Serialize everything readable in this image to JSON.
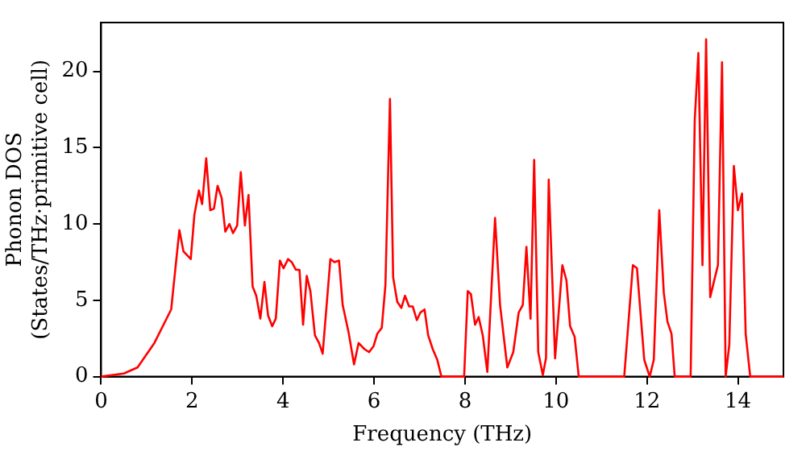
{
  "chart_data": {
    "type": "line",
    "xlabel": "Frequency (THz)",
    "ylabel": "Phonon DOS\n(States/THz·primitive cell)",
    "xlim": [
      0,
      15
    ],
    "ylim": [
      0,
      23.2
    ],
    "xticks": [
      0,
      2,
      4,
      6,
      8,
      10,
      12,
      14
    ],
    "yticks": [
      0,
      5,
      10,
      15,
      20
    ],
    "grid": false,
    "legend": false,
    "marker": "none",
    "line_style": "solid",
    "series": [
      {
        "color": "#ff0000",
        "x": [
          0,
          0.5,
          0.8,
          1.17,
          1.54,
          1.72,
          1.81,
          1.97,
          2.05,
          2.15,
          2.22,
          2.31,
          2.4,
          2.48,
          2.56,
          2.65,
          2.73,
          2.82,
          2.9,
          2.99,
          3.07,
          3.16,
          3.24,
          3.33,
          3.41,
          3.5,
          3.59,
          3.67,
          3.76,
          3.84,
          3.93,
          4.01,
          4.11,
          4.19,
          4.28,
          4.36,
          4.44,
          4.52,
          4.6,
          4.7,
          4.79,
          4.87,
          5.04,
          5.13,
          5.23,
          5.31,
          5.44,
          5.56,
          5.66,
          5.79,
          5.89,
          5.99,
          6.07,
          6.17,
          6.25,
          6.35,
          6.42,
          6.51,
          6.6,
          6.68,
          6.77,
          6.85,
          6.94,
          7.02,
          7.11,
          7.19,
          7.29,
          7.39,
          7.48,
          7.98,
          8.06,
          8.13,
          8.22,
          8.3,
          8.39,
          8.49,
          8.66,
          8.77,
          8.93,
          9.06,
          9.18,
          9.27,
          9.35,
          9.44,
          9.52,
          9.61,
          9.71,
          9.78,
          9.84,
          9.98,
          10.14,
          10.23,
          10.31,
          10.41,
          10.5,
          11.5,
          11.69,
          11.78,
          11.94,
          12.06,
          12.15,
          12.27,
          12.37,
          12.45,
          12.54,
          12.61,
          12.96,
          13.05,
          13.13,
          13.22,
          13.3,
          13.39,
          13.47,
          13.56,
          13.65,
          13.73,
          13.81,
          13.91,
          14,
          14.09,
          14.17,
          14.27,
          15
        ],
        "values": [
          0,
          0.2,
          0.6,
          2.2,
          4.4,
          9.6,
          8.2,
          7.7,
          10.6,
          12.2,
          11.3,
          14.3,
          10.9,
          11,
          12.5,
          11.7,
          9.5,
          10,
          9.4,
          9.9,
          13.4,
          9.9,
          11.9,
          5.9,
          5.3,
          3.8,
          6.2,
          4,
          3.3,
          3.8,
          7.6,
          7.1,
          7.7,
          7.5,
          7,
          7,
          3.4,
          6.6,
          5.6,
          2.7,
          2.2,
          1.5,
          7.7,
          7.5,
          7.6,
          4.7,
          2.9,
          0.8,
          2.2,
          1.8,
          1.6,
          2,
          2.8,
          3.2,
          6,
          18.2,
          6.5,
          4.9,
          4.5,
          5.3,
          4.6,
          4.6,
          3.7,
          4.2,
          4.4,
          2.7,
          1.8,
          1.1,
          0,
          0,
          5.6,
          5.4,
          3.4,
          3.9,
          2.7,
          0.3,
          10.4,
          4.7,
          0.6,
          1.6,
          4.2,
          4.7,
          8.5,
          3.8,
          14.2,
          1.6,
          0.1,
          1.2,
          12.9,
          1.2,
          7.3,
          6.3,
          3.3,
          2.6,
          0,
          0,
          7.3,
          7.1,
          1.1,
          0,
          1.1,
          10.9,
          5.5,
          3.6,
          2.8,
          0,
          0,
          16.8,
          21.2,
          7.3,
          22.1,
          5.2,
          6.2,
          7.3,
          20.6,
          0,
          2.1,
          13.8,
          10.9,
          12,
          2.8,
          0,
          0
        ]
      }
    ]
  }
}
